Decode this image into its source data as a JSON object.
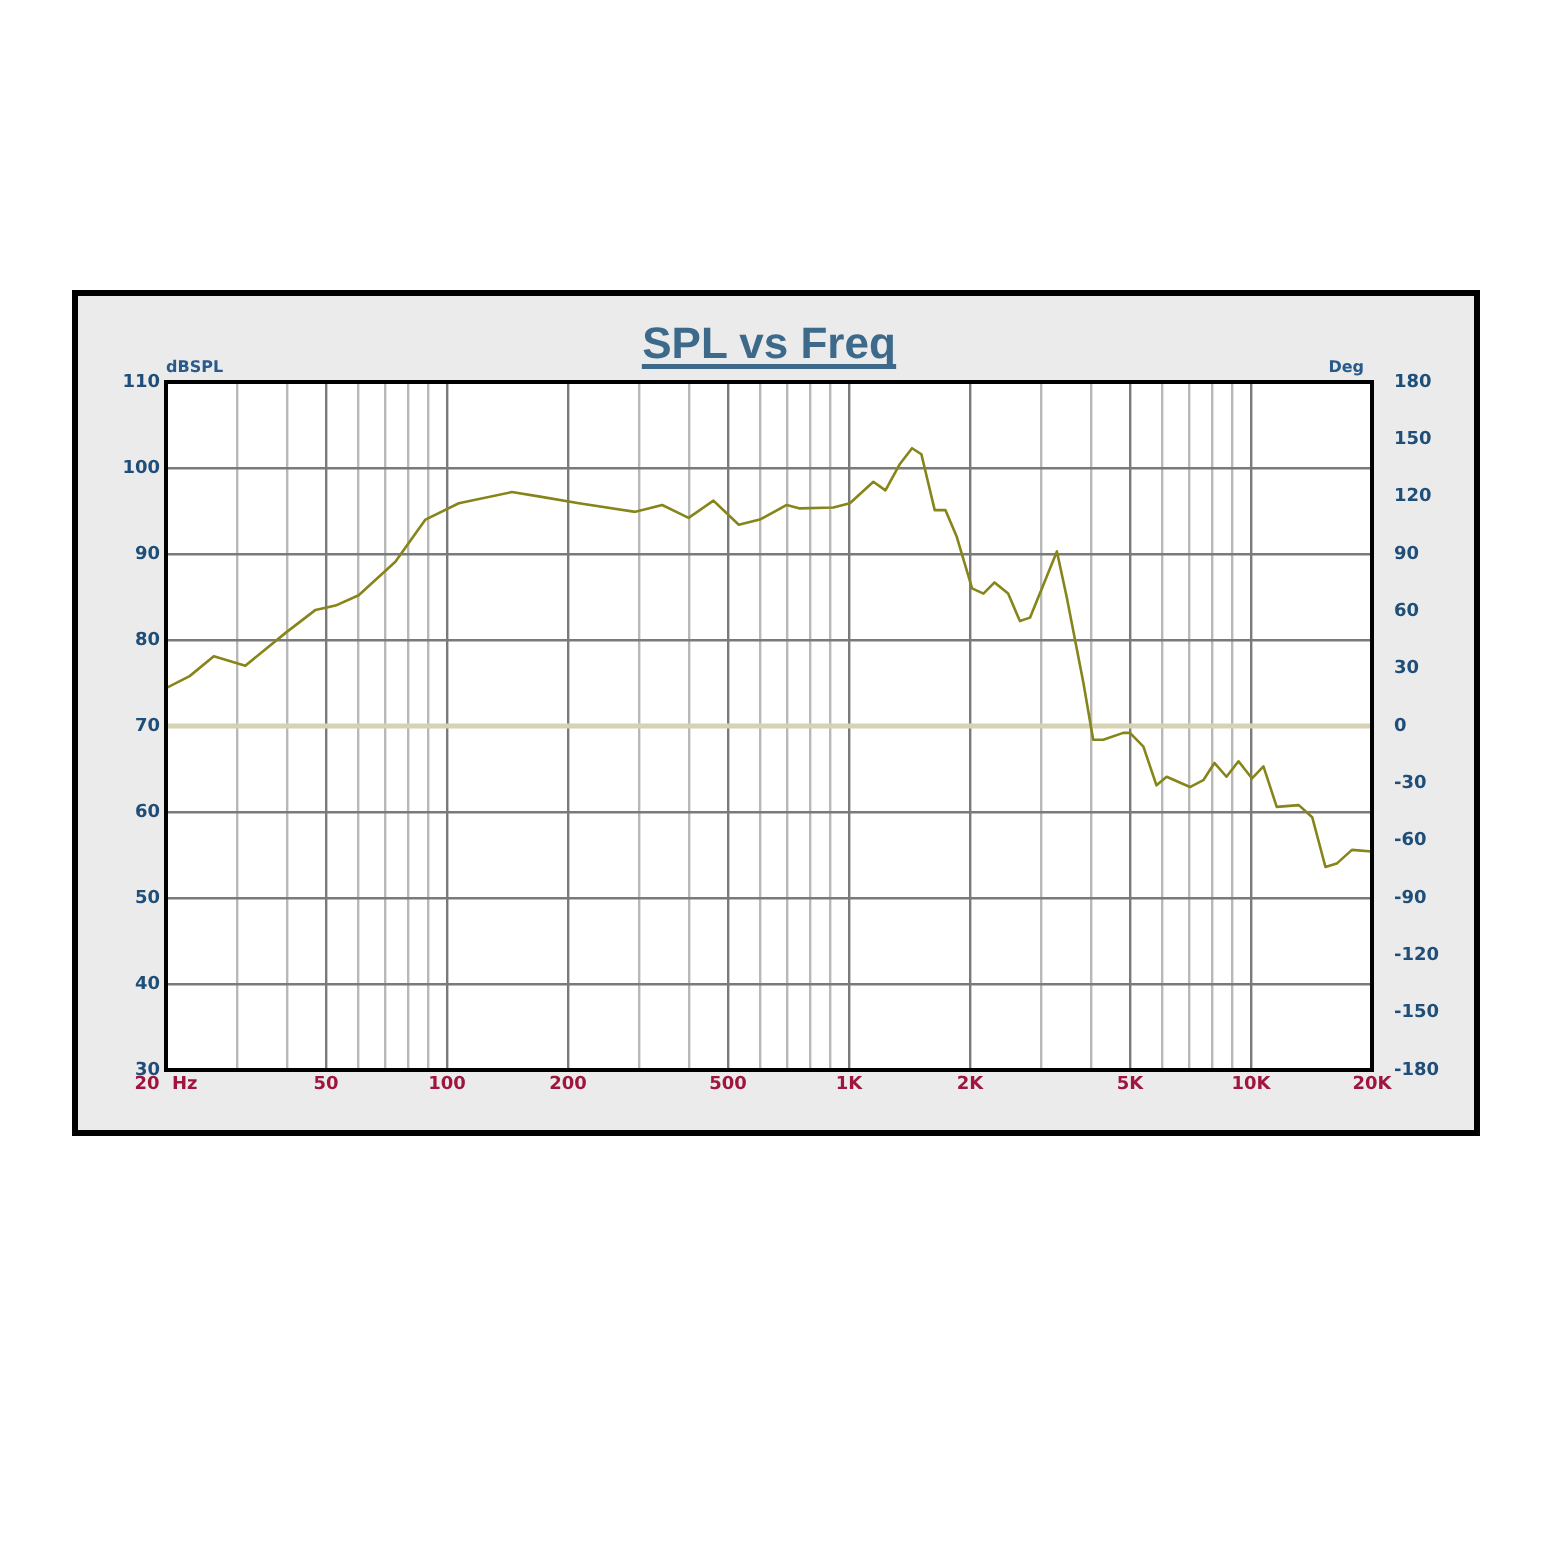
{
  "chart_data": {
    "type": "line",
    "title": "SPL vs Freq",
    "ylabel": "dBSPL",
    "y2label": "Deg",
    "series": [
      {
        "color": "#85851a",
        "x": [
          20,
          22.9,
          26.3,
          31.5,
          39.6,
          47.1,
          52.8,
          60.3,
          74.4,
          88.4,
          107,
          145,
          169,
          213,
          294,
          343,
          399,
          460,
          532,
          600,
          700,
          755,
          914,
          1005,
          1150,
          1232,
          1340,
          1435,
          1514,
          1634,
          1738,
          1854,
          2024,
          2160,
          2302,
          2488,
          2662,
          2820,
          3290,
          3480,
          3830,
          4050,
          4290,
          4810,
          5000,
          5400,
          5820,
          6170,
          7050,
          7610,
          8110,
          8690,
          9310,
          10060,
          10740,
          11590,
          13150,
          14200,
          15320,
          16340,
          17830,
          20000
        ],
        "values": [
          74.4,
          75.8,
          78.1,
          77.0,
          80.8,
          83.5,
          84.0,
          85.2,
          89.1,
          94.0,
          95.9,
          97.2,
          96.7,
          95.9,
          94.9,
          95.7,
          94.2,
          96.2,
          93.4,
          94.0,
          95.7,
          95.3,
          95.4,
          95.9,
          98.4,
          97.4,
          100.5,
          102.3,
          101.6,
          95.1,
          95.1,
          92.0,
          86.0,
          85.4,
          86.7,
          85.4,
          82.2,
          82.6,
          90.3,
          85.0,
          75.0,
          68.4,
          68.4,
          69.2,
          69.2,
          67.6,
          63.1,
          64.1,
          62.9,
          63.7,
          65.7,
          64.1,
          65.9,
          63.9,
          65.3,
          60.6,
          60.8,
          59.4,
          53.6,
          54.0,
          55.6,
          55.4
        ]
      }
    ],
    "log": "x",
    "xlim": [
      20,
      20000
    ],
    "xticks": [
      {
        "value": 20,
        "label": "20  Hz"
      },
      {
        "value": 30,
        "label": null
      },
      {
        "value": 40,
        "label": null
      },
      {
        "value": 50,
        "label": "50"
      },
      {
        "value": 60,
        "label": null
      },
      {
        "value": 70,
        "label": null
      },
      {
        "value": 80,
        "label": null
      },
      {
        "value": 90,
        "label": null
      },
      {
        "value": 100,
        "label": "100"
      },
      {
        "value": 200,
        "label": "200"
      },
      {
        "value": 300,
        "label": null
      },
      {
        "value": 400,
        "label": null
      },
      {
        "value": 500,
        "label": "500"
      },
      {
        "value": 600,
        "label": null
      },
      {
        "value": 700,
        "label": null
      },
      {
        "value": 800,
        "label": null
      },
      {
        "value": 900,
        "label": null
      },
      {
        "value": 1000,
        "label": "1K"
      },
      {
        "value": 2000,
        "label": "2K"
      },
      {
        "value": 3000,
        "label": null
      },
      {
        "value": 4000,
        "label": null
      },
      {
        "value": 5000,
        "label": "5K"
      },
      {
        "value": 6000,
        "label": null
      },
      {
        "value": 7000,
        "label": null
      },
      {
        "value": 8000,
        "label": null
      },
      {
        "value": 9000,
        "label": null
      },
      {
        "value": 10000,
        "label": "10K"
      },
      {
        "value": 20000,
        "label": "20K"
      }
    ],
    "ylim": [
      30,
      110
    ],
    "yticks": [
      30,
      40,
      50,
      60,
      70,
      80,
      90,
      100,
      110
    ],
    "y2lim": [
      -180,
      180
    ],
    "y2ticks": [
      -180,
      -150,
      -120,
      -90,
      -60,
      -30,
      0,
      30,
      60,
      90,
      120,
      150,
      180
    ],
    "ref_lines": [
      {
        "axis": "y2",
        "value": 0,
        "color": "#d6d3b4"
      }
    ],
    "grid": true,
    "legend": false,
    "marker": "none",
    "line_style": "solid"
  }
}
